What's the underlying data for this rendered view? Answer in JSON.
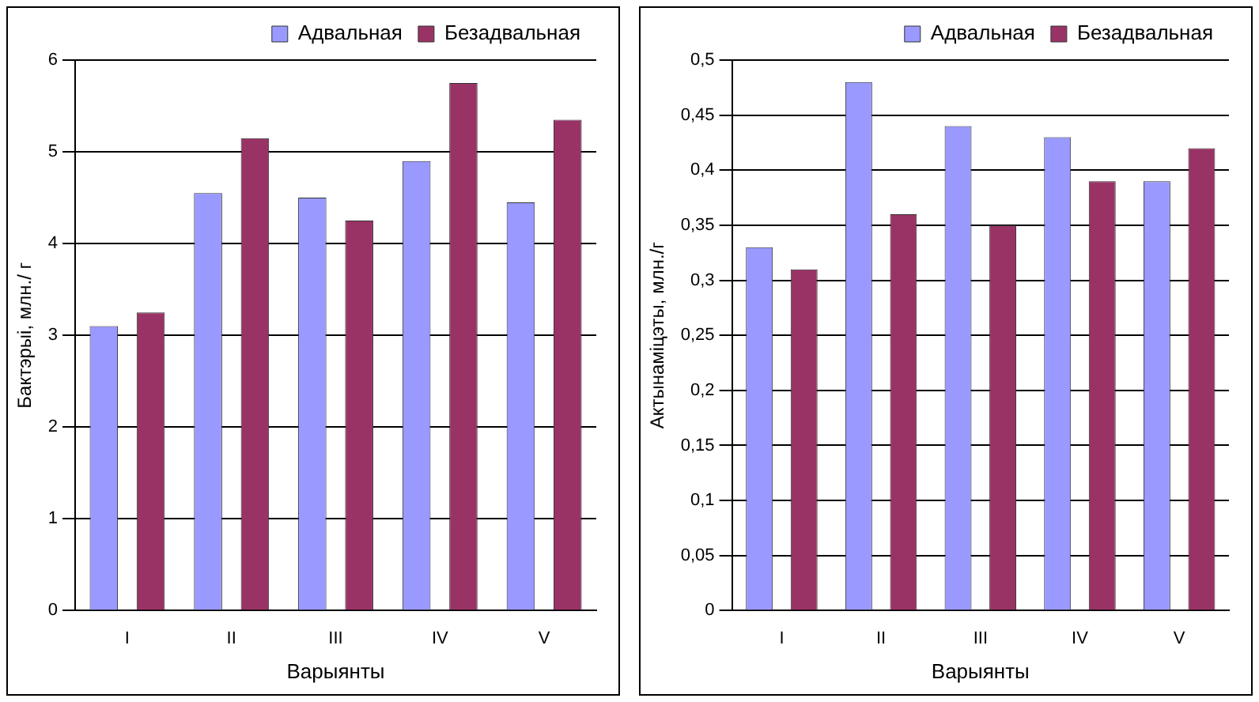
{
  "chart_data": [
    {
      "type": "bar",
      "ylabel": "Бактэрыі, млн./ г",
      "xlabel": "Варыянты",
      "categories": [
        "I",
        "II",
        "III",
        "IV",
        "V"
      ],
      "series": [
        {
          "name": "Адвальная",
          "color": "#9999ff",
          "values": [
            3.1,
            4.55,
            4.5,
            4.9,
            4.45
          ]
        },
        {
          "name": "Безадвальная",
          "color": "#993366",
          "values": [
            3.25,
            5.15,
            4.25,
            5.75,
            5.35
          ]
        }
      ],
      "ylim": [
        0,
        6
      ],
      "yticks": [
        0,
        1,
        2,
        3,
        4,
        5,
        6
      ],
      "grid": "y",
      "legend": "top right"
    },
    {
      "type": "bar",
      "ylabel": "Актынаміцэты, млн./г",
      "xlabel": "Варыянты",
      "categories": [
        "I",
        "II",
        "III",
        "IV",
        "V"
      ],
      "series": [
        {
          "name": "Адвальная",
          "color": "#9999ff",
          "values": [
            0.33,
            0.48,
            0.44,
            0.43,
            0.39
          ]
        },
        {
          "name": "Безадвальная",
          "color": "#993366",
          "values": [
            0.31,
            0.36,
            0.35,
            0.39,
            0.42
          ]
        }
      ],
      "ylim": [
        0,
        0.5
      ],
      "yticks": [
        0,
        {
          "value": 0.05,
          "label": "0,05"
        },
        {
          "value": 0.1,
          "label": "0,1"
        },
        {
          "value": 0.15,
          "label": "0,15"
        },
        {
          "value": 0.2,
          "label": "0,2"
        },
        {
          "value": 0.25,
          "label": "0,25"
        },
        {
          "value": 0.3,
          "label": "0,3"
        },
        {
          "value": 0.35,
          "label": "0,35"
        },
        {
          "value": 0.4,
          "label": "0,4"
        },
        {
          "value": 0.45,
          "label": "0,45"
        },
        {
          "value": 0.5,
          "label": "0,5"
        }
      ],
      "grid": "y",
      "legend": "top right"
    }
  ]
}
